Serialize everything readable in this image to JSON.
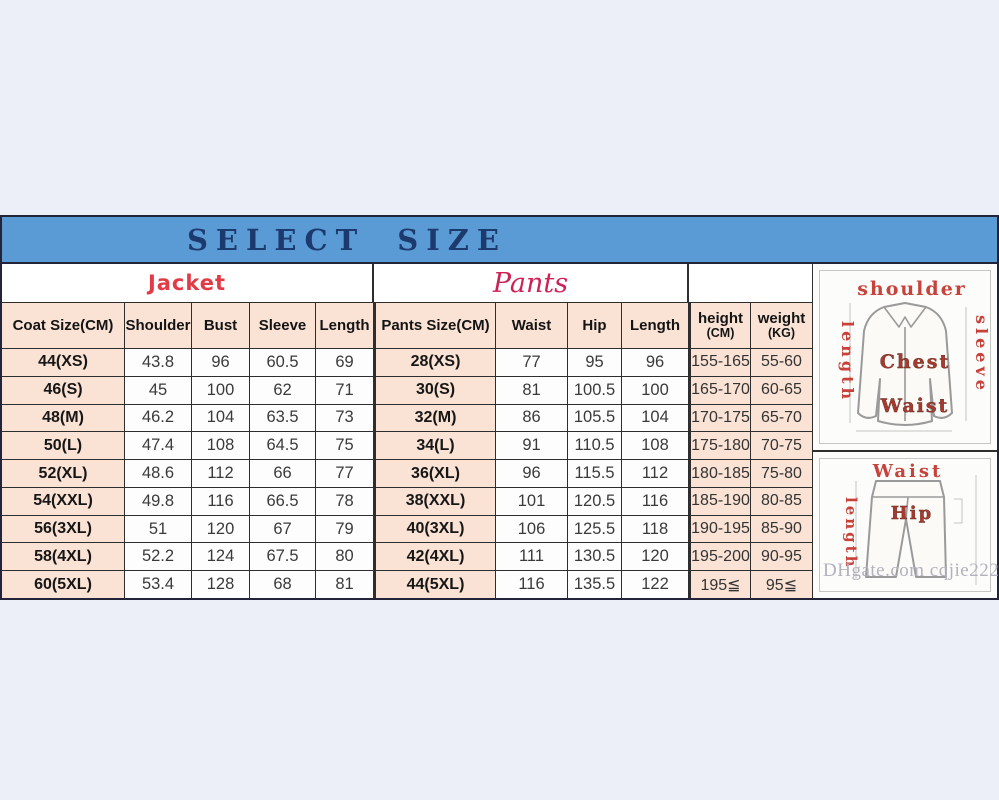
{
  "title": "SELECT SIZE",
  "chart_data": {
    "type": "table",
    "title": "SELECT SIZE",
    "group_headers": {
      "jacket": "Jacket",
      "pants": "Pants"
    },
    "columns": [
      "Coat Size(CM)",
      "Shoulder",
      "Bust",
      "Sleeve",
      "Length",
      "Pants Size(CM)",
      "Waist",
      "Hip",
      "Length",
      "height (CM)",
      "weight (KG)"
    ],
    "height_header": {
      "line1": "height",
      "line2": "(CM)"
    },
    "weight_header": {
      "line1": "weight",
      "line2": "(KG)"
    },
    "rows": [
      [
        "44(XS)",
        "43.8",
        "96",
        "60.5",
        "69",
        "28(XS)",
        "77",
        "95",
        "96",
        "155-165",
        "55-60"
      ],
      [
        "46(S)",
        "45",
        "100",
        "62",
        "71",
        "30(S)",
        "81",
        "100.5",
        "100",
        "165-170",
        "60-65"
      ],
      [
        "48(M)",
        "46.2",
        "104",
        "63.5",
        "73",
        "32(M)",
        "86",
        "105.5",
        "104",
        "170-175",
        "65-70"
      ],
      [
        "50(L)",
        "47.4",
        "108",
        "64.5",
        "75",
        "34(L)",
        "91",
        "110.5",
        "108",
        "175-180",
        "70-75"
      ],
      [
        "52(XL)",
        "48.6",
        "112",
        "66",
        "77",
        "36(XL)",
        "96",
        "115.5",
        "112",
        "180-185",
        "75-80"
      ],
      [
        "54(XXL)",
        "49.8",
        "116",
        "66.5",
        "78",
        "38(XXL)",
        "101",
        "120.5",
        "116",
        "185-190",
        "80-85"
      ],
      [
        "56(3XL)",
        "51",
        "120",
        "67",
        "79",
        "40(3XL)",
        "106",
        "125.5",
        "118",
        "190-195",
        "85-90"
      ],
      [
        "58(4XL)",
        "52.2",
        "124",
        "67.5",
        "80",
        "42(4XL)",
        "111",
        "130.5",
        "120",
        "195-200",
        "90-95"
      ],
      [
        "60(5XL)",
        "53.4",
        "128",
        "68",
        "81",
        "44(5XL)",
        "116",
        "135.5",
        "122",
        "195≦",
        "95≦"
      ]
    ]
  },
  "diagrams": {
    "jacket": {
      "top_label": "shoulder",
      "left_label": "length",
      "right_label": "sleeve",
      "center_label_1": "Chest",
      "center_label_2": "Waist"
    },
    "pants": {
      "top_label": "Waist",
      "left_label": "length",
      "center_label": "Hip"
    }
  },
  "watermark": "DHgate.com cqjie222",
  "colors": {
    "title_bar": "#5b9bd5",
    "title_text": "#1d3a6e",
    "header_cell_bg": "#fae3d5",
    "jacket_label": "#e23b47",
    "pants_label": "#ce2257",
    "diagram_label": "#c8423c",
    "border": "#2e2e2e",
    "page_background": "#edeff8",
    "watermark_text": "#b2b2bf"
  }
}
